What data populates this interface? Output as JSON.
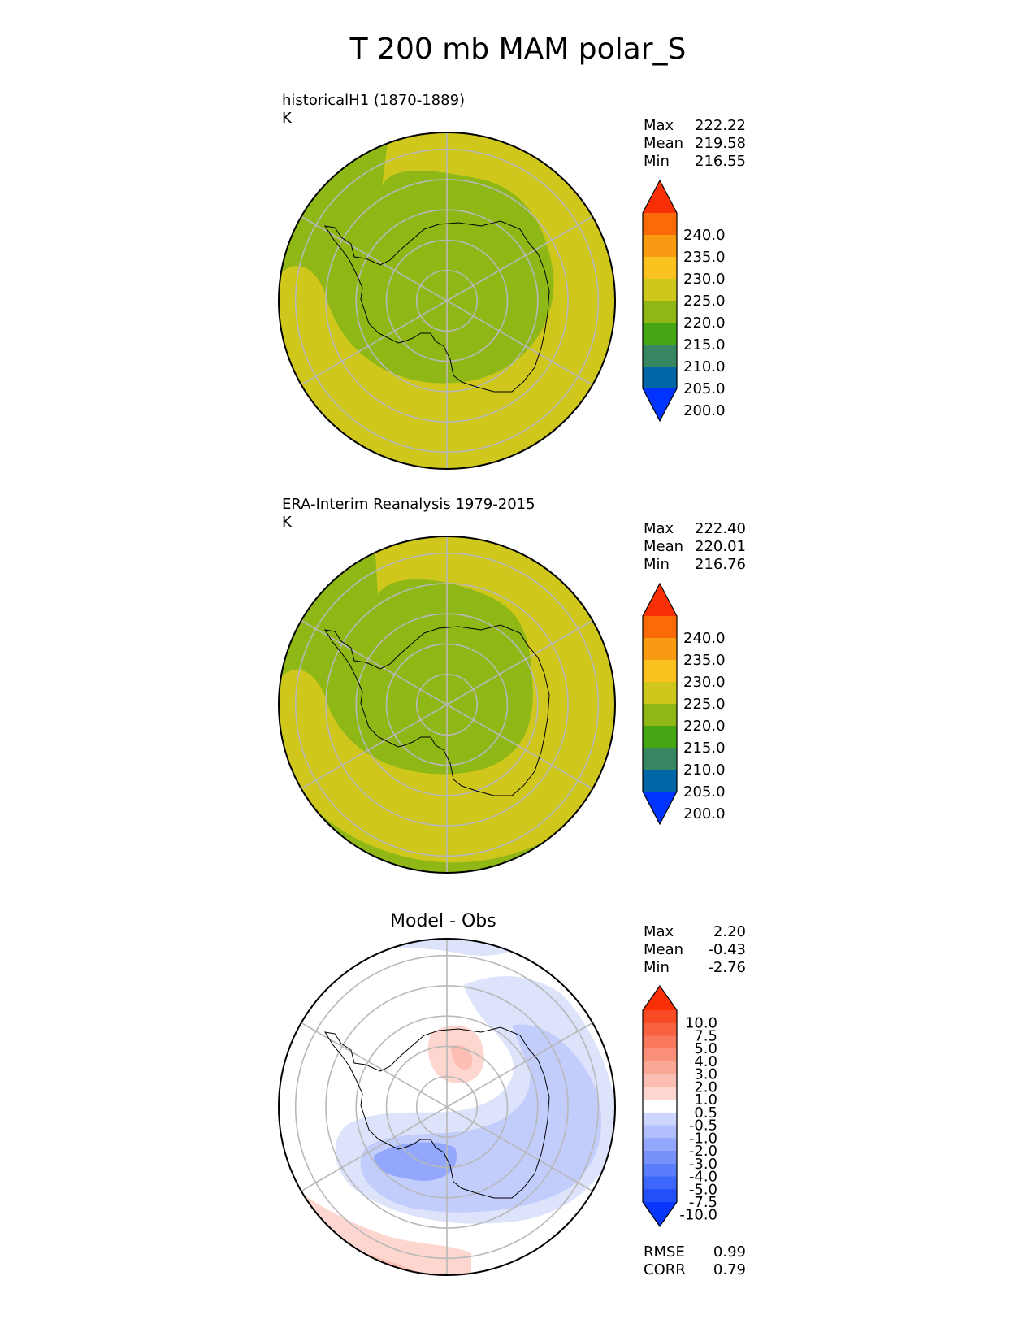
{
  "title": "T 200 mb MAM polar_S",
  "panels": [
    {
      "id": "test",
      "title_line1": "historicalH1 (1870-1889)",
      "title_line2": "K",
      "stats": [
        {
          "label": "Max",
          "value": "222.22"
        },
        {
          "label": "Mean",
          "value": "219.58"
        },
        {
          "label": "Min",
          "value": "216.55"
        }
      ],
      "colorbar": {
        "ticks": [
          "240.0",
          "235.0",
          "230.0",
          "225.0",
          "220.0",
          "215.0",
          "210.0",
          "205.0",
          "200.0"
        ],
        "colors": [
          "#0033ff",
          "#0066a6",
          "#378763",
          "#46a513",
          "#8fb816",
          "#d0c71d",
          "#f9c21f",
          "#f99a13",
          "#fa6a08",
          "#f82f05"
        ]
      },
      "map": {
        "base": "#8fb816",
        "warm": "#d0c71d",
        "variant": "test"
      }
    },
    {
      "id": "ref",
      "title_line1": "ERA-Interim Reanalysis 1979-2015",
      "title_line2": "K",
      "stats": [
        {
          "label": "Max",
          "value": "222.40"
        },
        {
          "label": "Mean",
          "value": "220.01"
        },
        {
          "label": "Min",
          "value": "216.76"
        }
      ],
      "colorbar": {
        "ticks": [
          "240.0",
          "235.0",
          "230.0",
          "225.0",
          "220.0",
          "215.0",
          "210.0",
          "205.0",
          "200.0"
        ],
        "colors": [
          "#0033ff",
          "#0066a6",
          "#378763",
          "#46a513",
          "#8fb816",
          "#d0c71d",
          "#f9c21f",
          "#f99a13",
          "#fa6a08",
          "#f82f05"
        ]
      },
      "map": {
        "base": "#8fb816",
        "warm": "#d0c71d",
        "variant": "ref"
      }
    },
    {
      "id": "diff",
      "title": "Model - Obs",
      "stats": [
        {
          "label": "Max",
          "value": "2.20"
        },
        {
          "label": "Mean",
          "value": "-0.43"
        },
        {
          "label": "Min",
          "value": "-2.76"
        }
      ],
      "colorbar": {
        "ticks": [
          "10.0",
          "7.5",
          "5.0",
          "4.0",
          "3.0",
          "2.0",
          "1.0",
          "0.5",
          "-0.5",
          "-1.0",
          "-2.0",
          "-3.0",
          "-4.0",
          "-5.0",
          "-7.5",
          "-10.0"
        ],
        "colors": [
          "#0536f9",
          "#2150fa",
          "#3d66fa",
          "#5a7dfb",
          "#7792fb",
          "#93a8fc",
          "#b1c0fd",
          "#cdd6fe",
          "#ffffff",
          "#fdd6d0",
          "#fcbeb3",
          "#fba796",
          "#fa907a",
          "#f9785d",
          "#f96141",
          "#f84a24",
          "#f82f05"
        ]
      },
      "footer_stats": [
        {
          "label": "RMSE",
          "value": "0.99"
        },
        {
          "label": "CORR",
          "value": "0.79"
        }
      ]
    }
  ]
}
